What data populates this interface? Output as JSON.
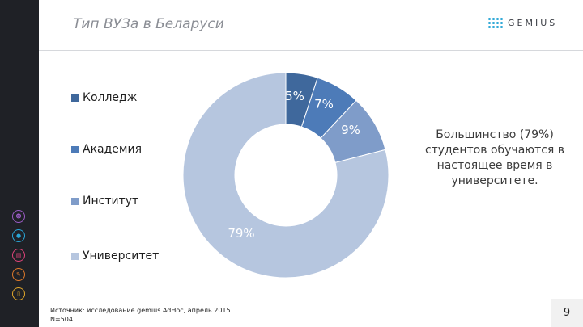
{
  "slide": {
    "title": "Тип ВУЗа в Беларуси",
    "logo": "GEMIUS",
    "note": "Большинство (79%) студентов обучаются в настоящее время в университете.",
    "source_line1": "Источник: исследование gemius.AdHoc, апрель 2015",
    "source_line2": "N=504",
    "page_number": "9"
  },
  "sidebar_icons": [
    {
      "icon": "people-icon",
      "color": "#9c5cc7"
    },
    {
      "icon": "bulb-icon",
      "color": "#2aa6d6"
    },
    {
      "icon": "cart-icon",
      "color": "#e0447a"
    },
    {
      "icon": "wrench-icon",
      "color": "#e07a2a"
    },
    {
      "icon": "phone-icon",
      "color": "#e0a62a"
    }
  ],
  "chart_data": {
    "type": "pie",
    "donut": true,
    "categories": [
      "Колледж",
      "Академия",
      "Институт",
      "Университет"
    ],
    "values": [
      5,
      7,
      9,
      79
    ],
    "labels": [
      "5%",
      "7%",
      "9%",
      "79%"
    ],
    "colors": [
      "#3f689c",
      "#4d7bb8",
      "#7f9cc9",
      "#b6c6df"
    ],
    "legend_position": "left"
  }
}
